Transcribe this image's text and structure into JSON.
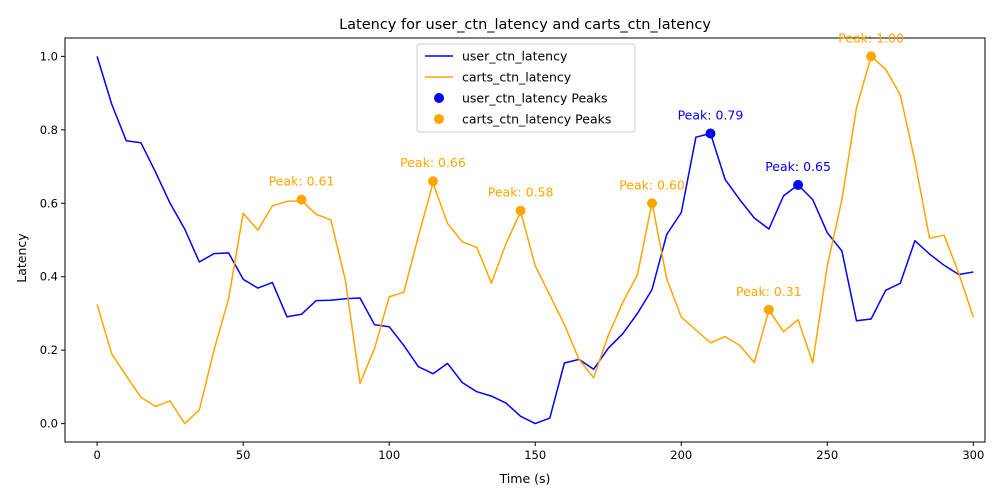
{
  "chart_data": {
    "type": "line",
    "title": "Latency for user_ctn_latency and carts_ctn_latency",
    "xlabel": "Time (s)",
    "ylabel": "Latency",
    "xlim": [
      -11,
      304
    ],
    "ylim": [
      -0.05,
      1.05
    ],
    "xticks": [
      0,
      50,
      100,
      150,
      200,
      250,
      300
    ],
    "xtick_labels": [
      "0",
      "50",
      "100",
      "150",
      "200",
      "250",
      "300"
    ],
    "yticks": [
      0.0,
      0.2,
      0.4,
      0.6,
      0.8,
      1.0
    ],
    "ytick_labels": [
      "0.0",
      "0.2",
      "0.4",
      "0.6",
      "0.8",
      "1.0"
    ],
    "grid": false,
    "legend_position": "top-center",
    "x": [
      0,
      5,
      10,
      15,
      20,
      25,
      30,
      35,
      40,
      45,
      50,
      55,
      60,
      65,
      70,
      75,
      80,
      85,
      90,
      95,
      100,
      105,
      110,
      115,
      120,
      125,
      130,
      135,
      140,
      145,
      150,
      155,
      160,
      165,
      170,
      175,
      180,
      185,
      190,
      195,
      200,
      205,
      210,
      215,
      220,
      225,
      230,
      235,
      240,
      245,
      250,
      255,
      260,
      265,
      270,
      275,
      280,
      285,
      290,
      295,
      300
    ],
    "series": [
      {
        "name": "user_ctn_latency",
        "color": "#0000ff",
        "values": [
          1.0,
          0.87,
          0.77,
          0.765,
          0.685,
          0.6,
          0.53,
          0.44,
          0.463,
          0.465,
          0.393,
          0.369,
          0.384,
          0.291,
          0.298,
          0.335,
          0.336,
          0.34,
          0.342,
          0.269,
          0.264,
          0.213,
          0.155,
          0.136,
          0.164,
          0.112,
          0.087,
          0.075,
          0.056,
          0.02,
          0.0,
          0.015,
          0.165,
          0.175,
          0.148,
          0.205,
          0.245,
          0.3,
          0.365,
          0.515,
          0.575,
          0.78,
          0.79,
          0.665,
          0.61,
          0.56,
          0.53,
          0.62,
          0.65,
          0.61,
          0.52,
          0.47,
          0.28,
          0.285,
          0.363,
          0.382,
          0.498,
          0.462,
          0.431,
          0.406,
          0.413
        ]
      },
      {
        "name": "carts_ctn_latency",
        "color": "#ffa500",
        "values": [
          0.325,
          0.19,
          0.13,
          0.072,
          0.047,
          0.062,
          0.0,
          0.037,
          0.2,
          0.34,
          0.573,
          0.527,
          0.593,
          0.605,
          0.607,
          0.57,
          0.555,
          0.39,
          0.11,
          0.205,
          0.345,
          0.358,
          0.51,
          0.655,
          0.545,
          0.495,
          0.48,
          0.383,
          0.49,
          0.577,
          0.43,
          0.35,
          0.27,
          0.175,
          0.125,
          0.24,
          0.33,
          0.405,
          0.602,
          0.395,
          0.29,
          0.255,
          0.22,
          0.237,
          0.213,
          0.166,
          0.31,
          0.25,
          0.283,
          0.166,
          0.43,
          0.61,
          0.86,
          1.0,
          0.965,
          0.895,
          0.715,
          0.505,
          0.513,
          0.41,
          0.29
        ]
      }
    ],
    "peaks": [
      {
        "series": "user_ctn_latency Peaks",
        "color": "#0000ff",
        "points": [
          {
            "x": 210,
            "y": 0.79,
            "label": "Peak: 0.79"
          },
          {
            "x": 240,
            "y": 0.65,
            "label": "Peak: 0.65"
          }
        ]
      },
      {
        "series": "carts_ctn_latency Peaks",
        "color": "#ffa500",
        "points": [
          {
            "x": 70,
            "y": 0.61,
            "label": "Peak: 0.61"
          },
          {
            "x": 115,
            "y": 0.66,
            "label": "Peak: 0.66"
          },
          {
            "x": 145,
            "y": 0.58,
            "label": "Peak: 0.58"
          },
          {
            "x": 190,
            "y": 0.6,
            "label": "Peak: 0.60"
          },
          {
            "x": 230,
            "y": 0.31,
            "label": "Peak: 0.31"
          },
          {
            "x": 265,
            "y": 1.0,
            "label": "Peak: 1.00"
          }
        ]
      }
    ],
    "legend": [
      {
        "label": "user_ctn_latency",
        "kind": "line",
        "color": "#0000ff"
      },
      {
        "label": "carts_ctn_latency",
        "kind": "line",
        "color": "#ffa500"
      },
      {
        "label": "user_ctn_latency Peaks",
        "kind": "marker",
        "color": "#0000ff"
      },
      {
        "label": "carts_ctn_latency Peaks",
        "kind": "marker",
        "color": "#ffa500"
      }
    ]
  }
}
